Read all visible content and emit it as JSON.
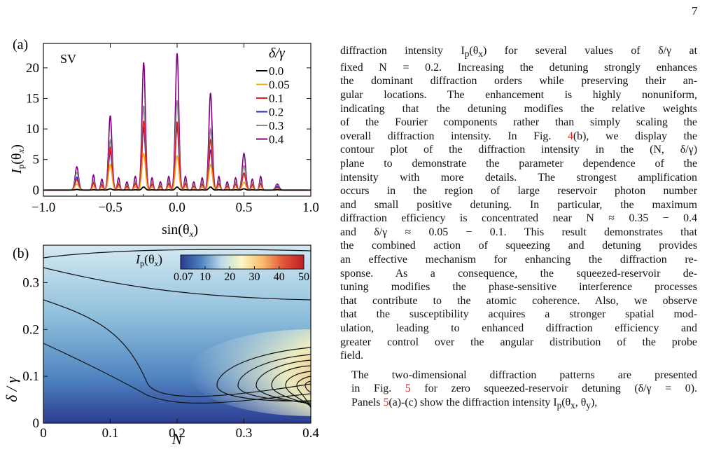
{
  "page_number": "7",
  "figure": {
    "panel_a": {
      "label": "(a)",
      "tag": "SV",
      "ylabel_main": "I",
      "ylabel_sub": "p",
      "ylabel_arg": "(θ",
      "ylabel_argsub": "x",
      "ylabel_close": ")",
      "xlabel_fn": "sin(θ",
      "xlabel_sub": "x",
      "xlabel_close": ")",
      "legend_title": "δ/γ"
    },
    "panel_b": {
      "label": "(b)",
      "ylabel": "δ / γ",
      "xlabel": "N",
      "cbar_label_main": "I",
      "cbar_label_sub": "p",
      "cbar_label_arg": "(θ",
      "cbar_label_argsub": "x",
      "cbar_label_close": ")",
      "cbar_ticks": [
        "0.07",
        "10",
        "20",
        "30",
        "40",
        "50"
      ]
    }
  },
  "chart_data": [
    {
      "type": "line",
      "panel": "(a)",
      "xlim": [
        -1.0,
        1.0
      ],
      "ylim": [
        -1,
        24
      ],
      "xticks": [
        "−1.0",
        "−0.5",
        "0.0",
        "0.5",
        "1.0"
      ],
      "yticks": [
        "0",
        "5",
        "10",
        "15",
        "20"
      ],
      "legend_position": "top-right",
      "peak_positions": [
        -0.75,
        -0.5,
        -0.25,
        0.0,
        0.25,
        0.5,
        0.75
      ],
      "series": [
        {
          "name": "0.0",
          "color": "#000000",
          "peaks": [
            0.1,
            0.2,
            0.5,
            0.5,
            0.5,
            0.2,
            0.05
          ]
        },
        {
          "name": "0.05",
          "color": "#f5a623",
          "peaks": [
            1.0,
            4.2,
            6.0,
            5.6,
            4.2,
            1.3,
            0.2
          ]
        },
        {
          "name": "0.1",
          "color": "#e0221c",
          "peaks": [
            1.7,
            7.0,
            11.3,
            11.2,
            8.2,
            2.8,
            0.4
          ]
        },
        {
          "name": "0.2",
          "color": "#1f2ad4",
          "peaks": [
            2.1,
            6.3,
            10.1,
            10.3,
            6.5,
            2.7,
            0.6
          ]
        },
        {
          "name": "0.3",
          "color": "#8a8a8a",
          "peaks": [
            2.9,
            8.2,
            13.8,
            14.7,
            10.0,
            4.0,
            0.8
          ]
        },
        {
          "name": "0.4",
          "color": "#800080",
          "peaks": [
            3.8,
            12.2,
            20.9,
            22.4,
            15.9,
            6.0,
            1.0
          ]
        }
      ]
    },
    {
      "type": "heatmap",
      "panel": "(b)",
      "xlim": [
        0,
        0.4
      ],
      "ylim": [
        0,
        0.38
      ],
      "xticks": [
        "0",
        "0.1",
        "0.2",
        "0.3",
        "0.4"
      ],
      "yticks": [
        "0",
        "0.1",
        "0.2",
        "0.3"
      ],
      "colorbar_range": [
        0.07,
        50
      ],
      "colormap": [
        "#2b3a8f",
        "#4d83c1",
        "#bcdbe9",
        "#fbf7c2",
        "#f7bb6a",
        "#e2543a",
        "#bd1f26"
      ]
    }
  ],
  "body_text": {
    "para1_lines": [
      "diffraction intensity I<sub>p</sub>(θ<sub>x</sub>) for several values of δ/γ at",
      "fixed N = 0.2. Increasing the detuning strongly enhances",
      "the dominant diffraction orders while preserving their an-",
      "gular locations. The enhancement is highly nonuniform,",
      "indicating that the detuning modifies the relative weights",
      "of the Fourier components rather than simply scaling the",
      "overall diffraction intensity. In Fig. <ref>4</ref>(b), we display the",
      "contour plot of the diffraction intensity in the (N, δ/γ)",
      "plane to demonstrate the parameter dependence of the",
      "intensity with more details. The strongest amplification",
      "occurs in the region of large reservoir photon number",
      "and small positive detuning. In particular, the maximum",
      "diffraction efficiency is concentrated near N ≈ 0.35 − 0.4",
      "and δ/γ ≈ 0.05 − 0.1. This result demonstrates that",
      "the combined action of squeezing and detuning provides",
      "an effective mechanism for enhancing the diffraction re-",
      "sponse. As a consequence, the squeezed-reservoir de-",
      "tuning modifies the phase-sensitive interference processes",
      "that contribute to the atomic coherence. Also, we observe",
      "that the susceptibility acquires a stronger spatial mod-",
      "ulation, leading to enhanced diffraction efficiency and",
      "greater control over the angular distribution of the probe",
      "field."
    ],
    "para2_lines": [
      "The two-dimensional diffraction patterns are presented",
      "in Fig. <ref>5</ref> for zero squeezed-reservoir detuning (δ/γ = 0).",
      "Panels <ref>5</ref>(a)-(c) show the diffraction intensity I<sub>p</sub>(θ<sub>x</sub>, θ<sub>y</sub>),"
    ]
  }
}
